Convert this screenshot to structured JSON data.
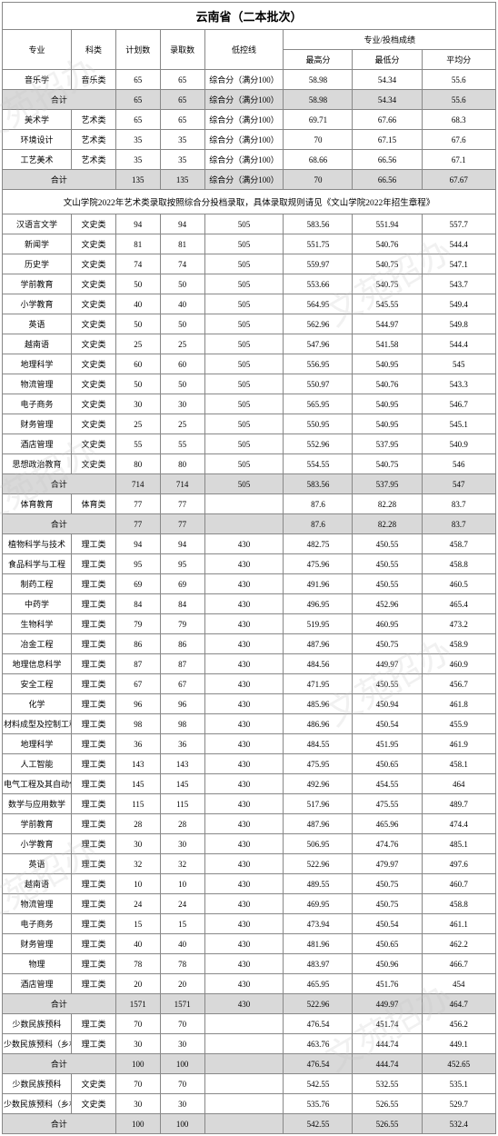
{
  "title": "云南省（二本批次）",
  "headers": {
    "major": "专业",
    "kelei": "科类",
    "plan": "计划数",
    "admit": "录取数",
    "lowline": "低控线",
    "score_group": "专业/投档成绩",
    "max": "最高分",
    "min": "最低分",
    "avg": "平均分"
  },
  "note_text": "文山学院2022年艺术类录取按照综合分投档录取，具体录取规则请见《文山学院2022年招生章程》",
  "subtotal_label": "合计",
  "styling": {
    "subtotal_bg": "#d9d9d9",
    "border_color": "#888888",
    "font_size_cell": 9,
    "font_size_title": 13
  },
  "rows": [
    {
      "t": "d",
      "major": "音乐学",
      "kl": "音乐类",
      "p": "65",
      "a": "65",
      "l": "综合分（满分100）",
      "mx": "58.98",
      "mn": "54.34",
      "av": "55.6"
    },
    {
      "t": "s",
      "p": "65",
      "a": "65",
      "l": "综合分（满分100）",
      "mx": "58.98",
      "mn": "54.34",
      "av": "55.6"
    },
    {
      "t": "d",
      "major": "美术学",
      "kl": "艺术类",
      "p": "65",
      "a": "65",
      "l": "综合分（满分100）",
      "mx": "69.71",
      "mn": "67.66",
      "av": "68.3"
    },
    {
      "t": "d",
      "major": "环境设计",
      "kl": "艺术类",
      "p": "35",
      "a": "35",
      "l": "综合分（满分100）",
      "mx": "70",
      "mn": "67.15",
      "av": "67.6"
    },
    {
      "t": "d",
      "major": "工艺美术",
      "kl": "艺术类",
      "p": "35",
      "a": "35",
      "l": "综合分（满分100）",
      "mx": "68.66",
      "mn": "66.56",
      "av": "67.1"
    },
    {
      "t": "s",
      "p": "135",
      "a": "135",
      "l": "综合分（满分100）",
      "mx": "70",
      "mn": "66.56",
      "av": "67.67"
    },
    {
      "t": "note"
    },
    {
      "t": "d",
      "major": "汉语言文学",
      "kl": "文史类",
      "p": "94",
      "a": "94",
      "l": "505",
      "mx": "583.56",
      "mn": "551.94",
      "av": "557.7"
    },
    {
      "t": "d",
      "major": "新闻学",
      "kl": "文史类",
      "p": "81",
      "a": "81",
      "l": "505",
      "mx": "551.75",
      "mn": "540.76",
      "av": "544.4"
    },
    {
      "t": "d",
      "major": "历史学",
      "kl": "文史类",
      "p": "74",
      "a": "74",
      "l": "505",
      "mx": "559.97",
      "mn": "540.75",
      "av": "547.1"
    },
    {
      "t": "d",
      "major": "学前教育",
      "kl": "文史类",
      "p": "50",
      "a": "50",
      "l": "505",
      "mx": "553.66",
      "mn": "540.75",
      "av": "543.7"
    },
    {
      "t": "d",
      "major": "小学教育",
      "kl": "文史类",
      "p": "40",
      "a": "40",
      "l": "505",
      "mx": "564.95",
      "mn": "545.55",
      "av": "549.4"
    },
    {
      "t": "d",
      "major": "英语",
      "kl": "文史类",
      "p": "50",
      "a": "50",
      "l": "505",
      "mx": "562.96",
      "mn": "544.97",
      "av": "549.8"
    },
    {
      "t": "d",
      "major": "越南语",
      "kl": "文史类",
      "p": "25",
      "a": "25",
      "l": "505",
      "mx": "547.96",
      "mn": "541.58",
      "av": "544.4"
    },
    {
      "t": "d",
      "major": "地理科学",
      "kl": "文史类",
      "p": "60",
      "a": "60",
      "l": "505",
      "mx": "556.95",
      "mn": "540.95",
      "av": "545"
    },
    {
      "t": "d",
      "major": "物流管理",
      "kl": "文史类",
      "p": "50",
      "a": "50",
      "l": "505",
      "mx": "550.97",
      "mn": "540.76",
      "av": "543.3"
    },
    {
      "t": "d",
      "major": "电子商务",
      "kl": "文史类",
      "p": "30",
      "a": "30",
      "l": "505",
      "mx": "565.95",
      "mn": "540.95",
      "av": "546.7"
    },
    {
      "t": "d",
      "major": "财务管理",
      "kl": "文史类",
      "p": "25",
      "a": "25",
      "l": "505",
      "mx": "550.95",
      "mn": "540.95",
      "av": "545.1"
    },
    {
      "t": "d",
      "major": "酒店管理",
      "kl": "文史类",
      "p": "55",
      "a": "55",
      "l": "505",
      "mx": "552.96",
      "mn": "537.95",
      "av": "540.9"
    },
    {
      "t": "d",
      "major": "思想政治教育",
      "kl": "文史类",
      "p": "80",
      "a": "80",
      "l": "505",
      "mx": "554.55",
      "mn": "540.75",
      "av": "546"
    },
    {
      "t": "s",
      "p": "714",
      "a": "714",
      "l": "505",
      "mx": "583.56",
      "mn": "537.95",
      "av": "547"
    },
    {
      "t": "d",
      "major": "体育教育",
      "kl": "体育类",
      "p": "77",
      "a": "77",
      "l": "",
      "mx": "87.6",
      "mn": "82.28",
      "av": "83.7"
    },
    {
      "t": "s",
      "p": "77",
      "a": "77",
      "l": "",
      "mx": "87.6",
      "mn": "82.28",
      "av": "83.7"
    },
    {
      "t": "d",
      "major": "植物科学与技术",
      "kl": "理工类",
      "p": "94",
      "a": "94",
      "l": "430",
      "mx": "482.75",
      "mn": "450.55",
      "av": "458.7"
    },
    {
      "t": "d",
      "major": "食品科学与工程",
      "kl": "理工类",
      "p": "95",
      "a": "95",
      "l": "430",
      "mx": "475.96",
      "mn": "450.55",
      "av": "458.8"
    },
    {
      "t": "d",
      "major": "制药工程",
      "kl": "理工类",
      "p": "69",
      "a": "69",
      "l": "430",
      "mx": "491.96",
      "mn": "450.55",
      "av": "460.5"
    },
    {
      "t": "d",
      "major": "中药学",
      "kl": "理工类",
      "p": "84",
      "a": "84",
      "l": "430",
      "mx": "496.95",
      "mn": "452.96",
      "av": "465.4"
    },
    {
      "t": "d",
      "major": "生物科学",
      "kl": "理工类",
      "p": "79",
      "a": "79",
      "l": "430",
      "mx": "519.95",
      "mn": "460.95",
      "av": "473.2"
    },
    {
      "t": "d",
      "major": "冶金工程",
      "kl": "理工类",
      "p": "86",
      "a": "86",
      "l": "430",
      "mx": "487.96",
      "mn": "450.75",
      "av": "458.9"
    },
    {
      "t": "d",
      "major": "地理信息科学",
      "kl": "理工类",
      "p": "87",
      "a": "87",
      "l": "430",
      "mx": "484.56",
      "mn": "449.97",
      "av": "460.9"
    },
    {
      "t": "d",
      "major": "安全工程",
      "kl": "理工类",
      "p": "67",
      "a": "67",
      "l": "430",
      "mx": "471.95",
      "mn": "450.55",
      "av": "456.7"
    },
    {
      "t": "d",
      "major": "化学",
      "kl": "理工类",
      "p": "96",
      "a": "96",
      "l": "430",
      "mx": "485.96",
      "mn": "450.94",
      "av": "461.8"
    },
    {
      "t": "d",
      "major": "材料成型及控制工程",
      "kl": "理工类",
      "p": "98",
      "a": "98",
      "l": "430",
      "mx": "486.96",
      "mn": "450.54",
      "av": "455.9"
    },
    {
      "t": "d",
      "major": "地理科学",
      "kl": "理工类",
      "p": "36",
      "a": "36",
      "l": "430",
      "mx": "484.55",
      "mn": "451.95",
      "av": "461.9"
    },
    {
      "t": "d",
      "major": "人工智能",
      "kl": "理工类",
      "p": "143",
      "a": "143",
      "l": "430",
      "mx": "475.95",
      "mn": "450.65",
      "av": "458.1"
    },
    {
      "t": "d",
      "major": "电气工程及其自动化",
      "kl": "理工类",
      "p": "145",
      "a": "145",
      "l": "430",
      "mx": "492.96",
      "mn": "454.55",
      "av": "464"
    },
    {
      "t": "d",
      "major": "数学与应用数学",
      "kl": "理工类",
      "p": "115",
      "a": "115",
      "l": "430",
      "mx": "517.96",
      "mn": "475.55",
      "av": "489.7"
    },
    {
      "t": "d",
      "major": "学前教育",
      "kl": "理工类",
      "p": "28",
      "a": "28",
      "l": "430",
      "mx": "487.96",
      "mn": "465.96",
      "av": "474.4"
    },
    {
      "t": "d",
      "major": "小学教育",
      "kl": "理工类",
      "p": "30",
      "a": "30",
      "l": "430",
      "mx": "506.95",
      "mn": "474.76",
      "av": "485.1"
    },
    {
      "t": "d",
      "major": "英语",
      "kl": "理工类",
      "p": "32",
      "a": "32",
      "l": "430",
      "mx": "522.96",
      "mn": "479.97",
      "av": "497.6"
    },
    {
      "t": "d",
      "major": "越南语",
      "kl": "理工类",
      "p": "10",
      "a": "10",
      "l": "430",
      "mx": "489.55",
      "mn": "450.75",
      "av": "460.7"
    },
    {
      "t": "d",
      "major": "物流管理",
      "kl": "理工类",
      "p": "24",
      "a": "24",
      "l": "430",
      "mx": "469.95",
      "mn": "450.75",
      "av": "458.8"
    },
    {
      "t": "d",
      "major": "电子商务",
      "kl": "理工类",
      "p": "15",
      "a": "15",
      "l": "430",
      "mx": "473.94",
      "mn": "450.54",
      "av": "461.1"
    },
    {
      "t": "d",
      "major": "财务管理",
      "kl": "理工类",
      "p": "40",
      "a": "40",
      "l": "430",
      "mx": "481.96",
      "mn": "450.65",
      "av": "462.2"
    },
    {
      "t": "d",
      "major": "物理",
      "kl": "理工类",
      "p": "78",
      "a": "78",
      "l": "430",
      "mx": "483.97",
      "mn": "450.96",
      "av": "466.7"
    },
    {
      "t": "d",
      "major": "酒店管理",
      "kl": "理工类",
      "p": "20",
      "a": "20",
      "l": "430",
      "mx": "465.95",
      "mn": "451.76",
      "av": "454"
    },
    {
      "t": "s",
      "p": "1571",
      "a": "1571",
      "l": "430",
      "mx": "522.96",
      "mn": "449.97",
      "av": "464.7"
    },
    {
      "t": "d",
      "major": "少数民族预科",
      "kl": "理工类",
      "p": "70",
      "a": "70",
      "l": "",
      "mx": "476.54",
      "mn": "451.74",
      "av": "456.2"
    },
    {
      "t": "d",
      "major": "少数民族预科（乡村振兴专项）",
      "kl": "理工类",
      "p": "30",
      "a": "30",
      "l": "",
      "mx": "463.76",
      "mn": "444.74",
      "av": "449.1"
    },
    {
      "t": "s",
      "p": "100",
      "a": "100",
      "l": "",
      "mx": "476.54",
      "mn": "444.74",
      "av": "452.65"
    },
    {
      "t": "d",
      "major": "少数民族预科",
      "kl": "文史类",
      "p": "70",
      "a": "70",
      "l": "",
      "mx": "542.55",
      "mn": "532.55",
      "av": "535.1"
    },
    {
      "t": "d",
      "major": "少数民族预科（乡村振兴专项）",
      "kl": "文史类",
      "p": "30",
      "a": "30",
      "l": "",
      "mx": "535.76",
      "mn": "526.55",
      "av": "529.7"
    },
    {
      "t": "s",
      "p": "100",
      "a": "100",
      "l": "",
      "mx": "542.55",
      "mn": "526.55",
      "av": "532.4"
    }
  ]
}
